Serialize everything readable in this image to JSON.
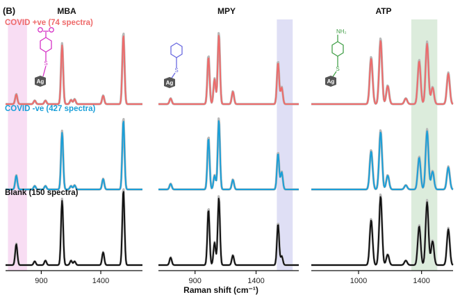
{
  "figure": {
    "panel_letter": "(B)",
    "xlabel": "Raman shift (cm⁻¹)"
  },
  "colors": {
    "covid_pos": "#ee6b6b",
    "covid_neg": "#1a9fd8",
    "blank": "#111111",
    "std_band": "#b8b8b8",
    "pink_band": "#f7d9f2",
    "blue_band": "#dcdcf4",
    "green_band": "#d8ead8",
    "mba_struct": "#d633c6",
    "mpy_struct": "#6a6ae0",
    "atp_struct": "#44a04a",
    "ag_box": "#555555"
  },
  "structures": {
    "mba": {
      "label": "Ag",
      "group": ""
    },
    "mpy": {
      "label": "Ag",
      "group": ""
    },
    "atp": {
      "label": "Ag",
      "group": "NH₂"
    }
  },
  "chart_data": [
    {
      "type": "line",
      "title": "MBA",
      "xlabel": "",
      "xlim": [
        600,
        1750
      ],
      "xticks": [
        900,
        1400
      ],
      "highlight_bands": [
        {
          "range": [
            620,
            780
          ],
          "color": "pink"
        }
      ],
      "series": [
        {
          "name": "COVID +ve (74 spectra)",
          "peaks": [
            {
              "x": 690,
              "height": 0.14
            },
            {
              "x": 845,
              "height": 0.05
            },
            {
              "x": 935,
              "height": 0.05
            },
            {
              "x": 1075,
              "height": 0.85
            },
            {
              "x": 1150,
              "height": 0.06
            },
            {
              "x": 1180,
              "height": 0.07
            },
            {
              "x": 1420,
              "height": 0.12
            },
            {
              "x": 1590,
              "height": 1.0
            }
          ]
        },
        {
          "name": "COVID -ve (427 spectra)",
          "peaks": [
            {
              "x": 690,
              "height": 0.2
            },
            {
              "x": 845,
              "height": 0.05
            },
            {
              "x": 935,
              "height": 0.05
            },
            {
              "x": 1075,
              "height": 0.82
            },
            {
              "x": 1150,
              "height": 0.05
            },
            {
              "x": 1180,
              "height": 0.06
            },
            {
              "x": 1420,
              "height": 0.15
            },
            {
              "x": 1590,
              "height": 1.0
            }
          ]
        },
        {
          "name": "Blank (150 spectra)",
          "peaks": [
            {
              "x": 690,
              "height": 0.28
            },
            {
              "x": 845,
              "height": 0.05
            },
            {
              "x": 935,
              "height": 0.06
            },
            {
              "x": 1075,
              "height": 0.86
            },
            {
              "x": 1150,
              "height": 0.06
            },
            {
              "x": 1180,
              "height": 0.05
            },
            {
              "x": 1420,
              "height": 0.17
            },
            {
              "x": 1590,
              "height": 1.0
            }
          ]
        }
      ]
    },
    {
      "type": "line",
      "title": "MPY",
      "xlabel": "",
      "xlim": [
        600,
        1750
      ],
      "xticks": [
        900,
        1400
      ],
      "highlight_bands": [
        {
          "range": [
            1570,
            1700
          ],
          "color": "blue"
        }
      ],
      "series": [
        {
          "name": "COVID +ve (74 spectra)",
          "peaks": [
            {
              "x": 700,
              "height": 0.08
            },
            {
              "x": 1010,
              "height": 0.68
            },
            {
              "x": 1060,
              "height": 0.36
            },
            {
              "x": 1095,
              "height": 1.0
            },
            {
              "x": 1210,
              "height": 0.18
            },
            {
              "x": 1580,
              "height": 0.6
            },
            {
              "x": 1610,
              "height": 0.24
            }
          ]
        },
        {
          "name": "COVID -ve (427 spectra)",
          "peaks": [
            {
              "x": 700,
              "height": 0.08
            },
            {
              "x": 1010,
              "height": 0.74
            },
            {
              "x": 1060,
              "height": 0.2
            },
            {
              "x": 1095,
              "height": 1.0
            },
            {
              "x": 1210,
              "height": 0.14
            },
            {
              "x": 1580,
              "height": 0.52
            },
            {
              "x": 1610,
              "height": 0.25
            }
          ]
        },
        {
          "name": "Blank (150 spectra)",
          "peaks": [
            {
              "x": 700,
              "height": 0.1
            },
            {
              "x": 1010,
              "height": 0.74
            },
            {
              "x": 1060,
              "height": 0.3
            },
            {
              "x": 1095,
              "height": 0.9
            },
            {
              "x": 1210,
              "height": 0.13
            },
            {
              "x": 1580,
              "height": 0.55
            },
            {
              "x": 1610,
              "height": 0.12
            }
          ]
        }
      ]
    },
    {
      "type": "line",
      "title": "ATP",
      "xlabel": "",
      "xlim": [
        700,
        1600
      ],
      "xticks": [
        1000,
        1400
      ],
      "highlight_bands": [
        {
          "range": [
            1335,
            1500
          ],
          "color": "green"
        }
      ],
      "series": [
        {
          "name": "COVID +ve (74 spectra)",
          "peaks": [
            {
              "x": 1080,
              "height": 0.66
            },
            {
              "x": 1140,
              "height": 0.92
            },
            {
              "x": 1185,
              "height": 0.26
            },
            {
              "x": 1300,
              "height": 0.08
            },
            {
              "x": 1385,
              "height": 0.62
            },
            {
              "x": 1435,
              "height": 0.87
            },
            {
              "x": 1470,
              "height": 0.24
            },
            {
              "x": 1570,
              "height": 0.44
            }
          ]
        },
        {
          "name": "COVID -ve (427 spectra)",
          "peaks": [
            {
              "x": 1080,
              "height": 0.55
            },
            {
              "x": 1140,
              "height": 0.83
            },
            {
              "x": 1185,
              "height": 0.2
            },
            {
              "x": 1300,
              "height": 0.06
            },
            {
              "x": 1385,
              "height": 0.46
            },
            {
              "x": 1435,
              "height": 0.84
            },
            {
              "x": 1470,
              "height": 0.26
            },
            {
              "x": 1570,
              "height": 0.32
            }
          ]
        },
        {
          "name": "Blank (150 spectra)",
          "peaks": [
            {
              "x": 1080,
              "height": 0.6
            },
            {
              "x": 1140,
              "height": 0.92
            },
            {
              "x": 1185,
              "height": 0.14
            },
            {
              "x": 1300,
              "height": 0.06
            },
            {
              "x": 1385,
              "height": 0.52
            },
            {
              "x": 1435,
              "height": 0.84
            },
            {
              "x": 1470,
              "height": 0.32
            },
            {
              "x": 1570,
              "height": 0.48
            }
          ]
        }
      ]
    }
  ]
}
